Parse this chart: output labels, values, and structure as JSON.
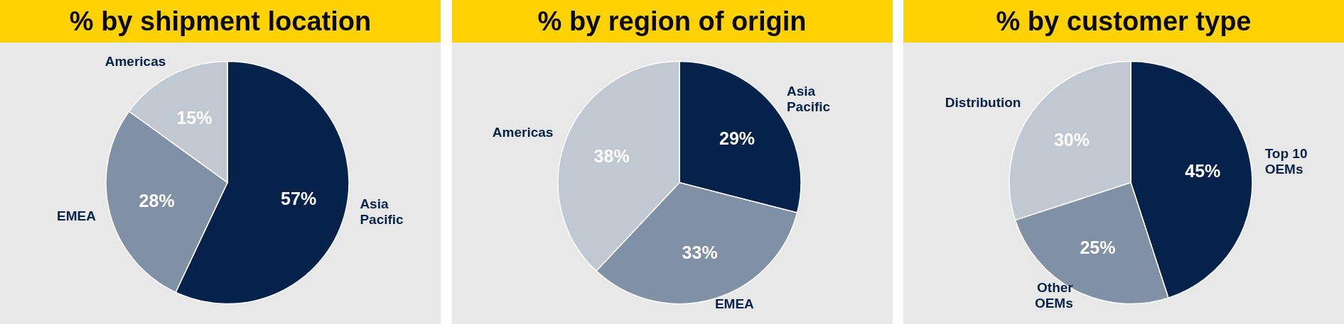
{
  "chart_data": [
    {
      "type": "pie",
      "title": "% by shipment location",
      "categories": [
        "Asia Pacific",
        "EMEA",
        "Americas"
      ],
      "values": [
        57,
        28,
        15
      ],
      "value_labels": [
        "57%",
        "28%",
        "15%"
      ],
      "colors": [
        "#05224a",
        "#8090a5",
        "#c0c8d2"
      ]
    },
    {
      "type": "pie",
      "title": "% by region of origin",
      "categories": [
        "Asia Pacific",
        "EMEA",
        "Americas"
      ],
      "values": [
        29,
        33,
        38
      ],
      "value_labels": [
        "29%",
        "33%",
        "38%"
      ],
      "colors": [
        "#05224a",
        "#8090a5",
        "#c0c8d2"
      ]
    },
    {
      "type": "pie",
      "title": "% by customer type",
      "categories": [
        "Top 10 OEMs",
        "Other OEMs",
        "Distribution"
      ],
      "values": [
        45,
        25,
        30
      ],
      "value_labels": [
        "45%",
        "25%",
        "30%"
      ],
      "colors": [
        "#05224a",
        "#8090a5",
        "#c0c8d2"
      ]
    }
  ]
}
